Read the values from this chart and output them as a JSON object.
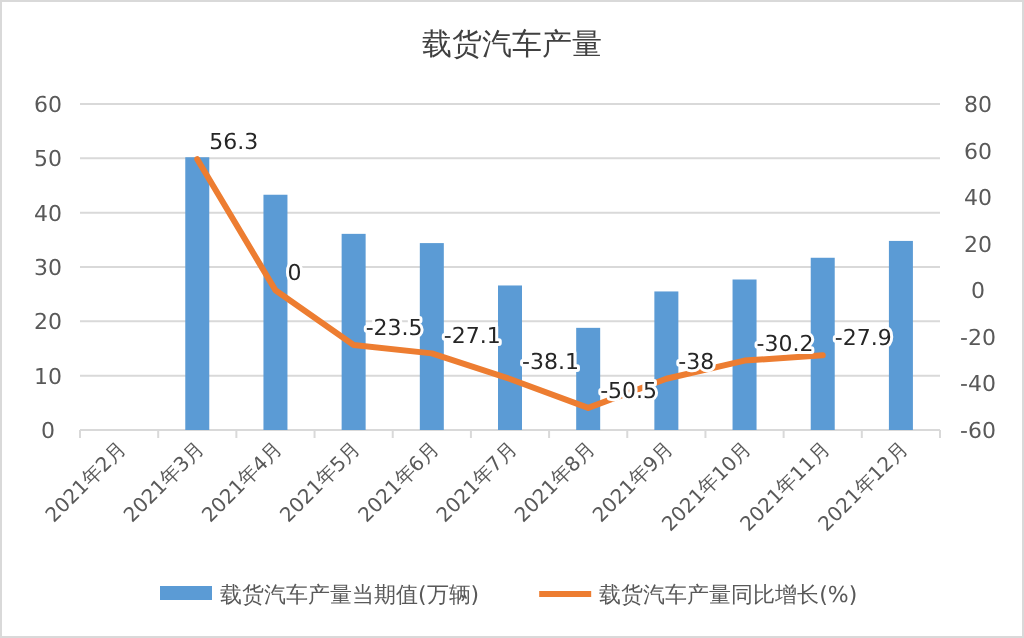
{
  "chart_data": {
    "type": "bar",
    "title": "载货汽车产量",
    "categories": [
      "2021年2月",
      "2021年3月",
      "2021年4月",
      "2021年5月",
      "2021年6月",
      "2021年7月",
      "2021年8月",
      "2021年9月",
      "2021年10月",
      "2021年11月",
      "2021年12月"
    ],
    "series": [
      {
        "name": "载货汽车产量当期值(万辆)",
        "color": "#5b9bd5",
        "values": [
          null,
          50.2,
          43.3,
          36.1,
          34.4,
          26.6,
          18.8,
          25.5,
          27.7,
          31.7,
          34.8
        ]
      },
      {
        "name": "载货汽车产量同比增长(%)",
        "type": "line",
        "axis": "y2",
        "color": "#ed7d31",
        "values": [
          null,
          56.3,
          0,
          -23.5,
          -27.1,
          -38.1,
          -50.5,
          -38,
          -30.2,
          -27.9,
          null
        ],
        "value_labels": [
          null,
          "56.3",
          "0",
          "-23.5",
          "-27.1",
          "-38.1",
          "-50.5",
          "-38",
          "-30.2",
          "-27.9",
          null
        ]
      }
    ],
    "ylim": [
      0,
      60
    ],
    "yticks": [
      0,
      10,
      20,
      30,
      40,
      50,
      60
    ],
    "y2lim": [
      -60,
      80
    ],
    "y2ticks": [
      -60,
      -40,
      -20,
      0,
      20,
      40,
      60,
      80
    ],
    "grid": "y",
    "legend": "bottom",
    "marker": "none",
    "line_style": "solid"
  }
}
